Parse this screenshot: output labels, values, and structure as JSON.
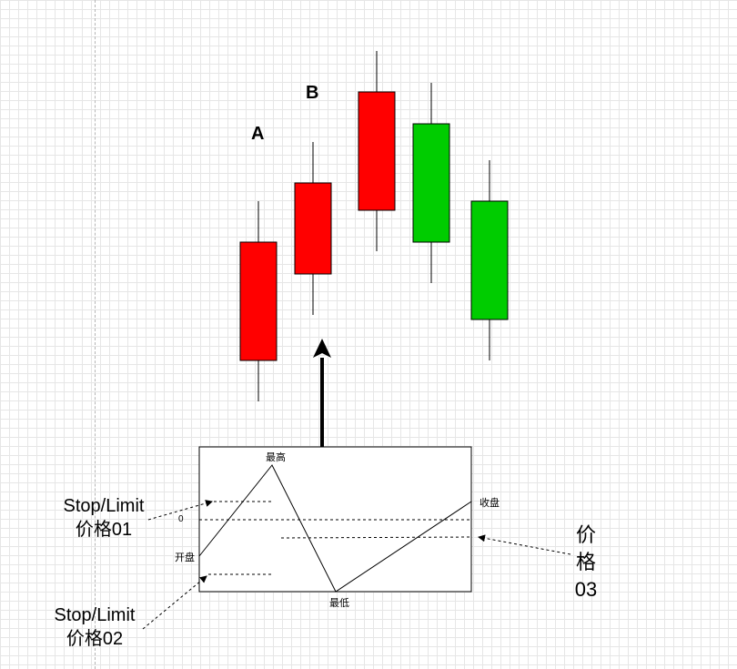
{
  "labels": {
    "A": "A",
    "B": "B",
    "high": "最高",
    "low": "最低",
    "open": "开盘",
    "close": "收盘",
    "zero": "0",
    "price01_line1": "Stop/Limit",
    "price01_line2": "价格01",
    "price02_line1": "Stop/Limit",
    "price02_line2": "价格02",
    "price03": [
      "价",
      "格",
      "03"
    ]
  },
  "colors": {
    "bearish": "#ff0000",
    "bullish": "#00cc00",
    "outline": "#000000"
  },
  "candles": [
    {
      "color": "bearish"
    },
    {
      "color": "bearish"
    },
    {
      "color": "bearish"
    },
    {
      "color": "bullish"
    },
    {
      "color": "bullish"
    }
  ]
}
